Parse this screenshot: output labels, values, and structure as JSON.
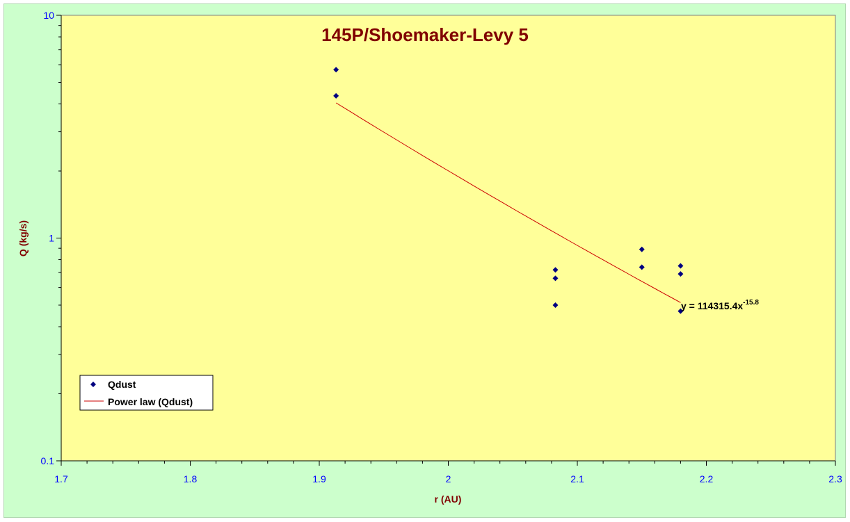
{
  "chart_data": {
    "type": "scatter",
    "title": "145P/Shoemaker-Levy 5",
    "xlabel": "r (AU)",
    "ylabel": "Q (kg/s)",
    "xlim": [
      1.7,
      2.3
    ],
    "ylim": [
      0.1,
      10
    ],
    "yscale": "log",
    "x_ticks": [
      1.7,
      1.8,
      1.9,
      2.0,
      2.1,
      2.2,
      2.3
    ],
    "x_tick_labels": [
      "1.7",
      "1.8",
      "1.9",
      "2",
      "2.1",
      "2.2",
      "2.3"
    ],
    "y_ticks": [
      0.1,
      1,
      10
    ],
    "y_tick_labels": [
      "0.1",
      "1",
      "10"
    ],
    "grid": false,
    "legend_position": "bottom-left",
    "series": [
      {
        "name": "Qdust",
        "marker": "diamond",
        "color": "#000080",
        "x": [
          1.913,
          1.913,
          2.083,
          2.083,
          2.083,
          2.15,
          2.15,
          2.18,
          2.18,
          2.18
        ],
        "y": [
          5.7,
          4.35,
          0.72,
          0.66,
          0.5,
          0.89,
          0.74,
          0.75,
          0.69,
          0.47
        ]
      },
      {
        "name": "Power law (Qdust)",
        "type": "line",
        "color": "#cc0000",
        "coefficient": 114315.4,
        "exponent": -15.8,
        "x_range": [
          1.913,
          2.18
        ]
      }
    ],
    "trendline_equation": {
      "base": "y = 114315.4x",
      "exponent": "-15.8"
    },
    "colors": {
      "plot_background": "#ffff99",
      "chart_background": "#ccffcc",
      "tick_labels": "#0000ff",
      "titles": "#800000"
    }
  }
}
